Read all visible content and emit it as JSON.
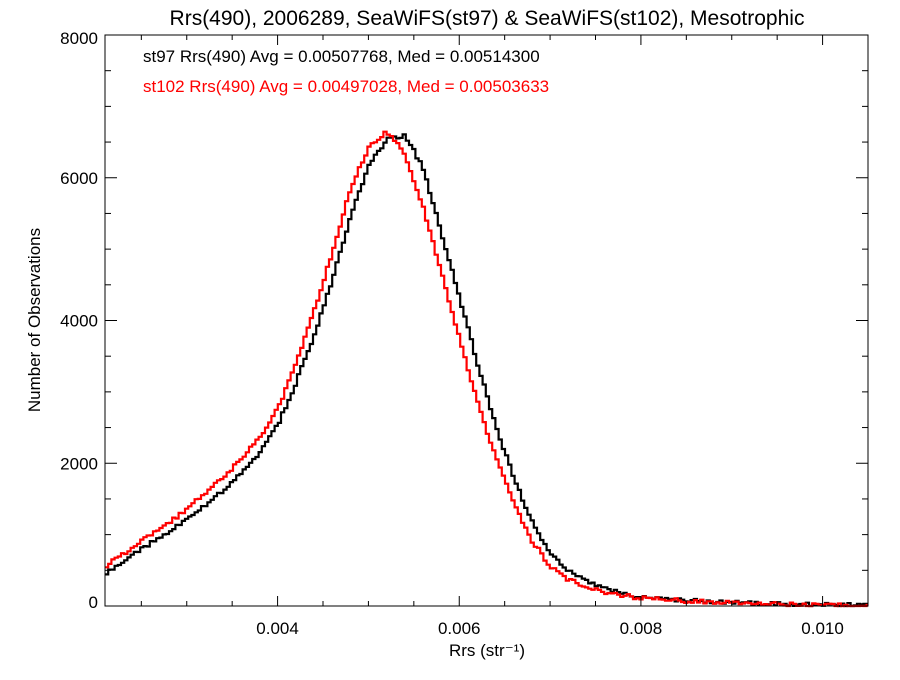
{
  "chart_data": {
    "type": "line",
    "title": "Rrs(490), 2006289, SeaWiFS(st97) & SeaWiFS(st102), Mesotrophic",
    "xlabel": "Rrs (str⁻¹)",
    "ylabel": "Number of Observations",
    "xlim": [
      0.0021,
      0.0105
    ],
    "ylim": [
      0,
      8000
    ],
    "x_ticks": [
      0.004,
      0.006,
      0.008,
      0.01
    ],
    "x_tick_labels": [
      "0.004",
      "0.006",
      "0.008",
      "0.010"
    ],
    "y_ticks": [
      0,
      2000,
      4000,
      6000,
      8000
    ],
    "y_tick_labels": [
      "0",
      "2000",
      "4000",
      "6000",
      "8000"
    ],
    "grid": false,
    "annotations": [
      {
        "text": "st97 Rrs(490) Avg = 0.00507768, Med = 0.00514300",
        "color": "#000000"
      },
      {
        "text": "st102 Rrs(490) Avg = 0.00497028, Med = 0.00503633",
        "color": "#ff0000"
      }
    ],
    "series": [
      {
        "color": "#000000",
        "x": [
          0.0021,
          0.0025,
          0.003,
          0.0035,
          0.0038,
          0.004,
          0.0042,
          0.0044,
          0.0046,
          0.0048,
          0.005,
          0.0052,
          0.0054,
          0.0056,
          0.0058,
          0.006,
          0.0062,
          0.0064,
          0.0066,
          0.0068,
          0.007,
          0.0072,
          0.0074,
          0.0076,
          0.0078,
          0.008,
          0.0085,
          0.009,
          0.0095,
          0.01,
          0.0105
        ],
        "y": [
          450,
          800,
          1200,
          1720,
          2150,
          2530,
          3120,
          3770,
          4560,
          5420,
          6170,
          6530,
          6600,
          6150,
          5250,
          4350,
          3400,
          2550,
          1800,
          1180,
          760,
          500,
          360,
          250,
          180,
          130,
          80,
          50,
          30,
          18,
          10
        ]
      },
      {
        "color": "#ff0000",
        "x": [
          0.0021,
          0.0025,
          0.003,
          0.0035,
          0.0038,
          0.004,
          0.0042,
          0.0044,
          0.0046,
          0.0048,
          0.005,
          0.0052,
          0.0054,
          0.0056,
          0.0058,
          0.006,
          0.0062,
          0.0064,
          0.0066,
          0.0068,
          0.007,
          0.0072,
          0.0074,
          0.0076,
          0.0078,
          0.008,
          0.0085,
          0.009,
          0.0095,
          0.01,
          0.0105
        ],
        "y": [
          550,
          900,
          1350,
          1930,
          2350,
          2760,
          3380,
          4120,
          4950,
          5830,
          6410,
          6650,
          6350,
          5600,
          4680,
          3770,
          2870,
          2080,
          1450,
          920,
          560,
          370,
          270,
          200,
          150,
          110,
          70,
          45,
          25,
          15,
          8
        ]
      }
    ]
  }
}
